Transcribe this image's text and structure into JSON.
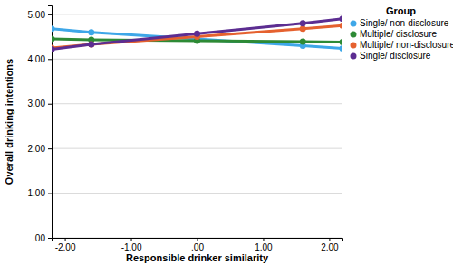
{
  "chart_data": {
    "type": "line",
    "x_label": "Responsible drinker similarity",
    "y_label": "Overall drinking intentions",
    "legend_title": "Group",
    "legend": "right",
    "grid": true,
    "marker": "circle",
    "x": [
      -2.2,
      -1.6,
      0,
      1.6,
      2.2
    ],
    "xlim": [
      -2.2,
      2.2
    ],
    "xticks": [
      {
        "value": -2,
        "label": "-2.00"
      },
      {
        "value": -1,
        "label": "-1.00"
      },
      {
        "value": 0,
        "label": ".00"
      },
      {
        "value": 1,
        "label": "1.00"
      },
      {
        "value": 2,
        "label": "2.00"
      }
    ],
    "ylim": [
      0,
      5.2
    ],
    "yticks": [
      {
        "value": 0,
        "label": ".00"
      },
      {
        "value": 1,
        "label": "1.00"
      },
      {
        "value": 2,
        "label": "2.00"
      },
      {
        "value": 3,
        "label": "3.00"
      },
      {
        "value": 4,
        "label": "4.00"
      },
      {
        "value": 5,
        "label": "5.00"
      }
    ],
    "series": [
      {
        "name": "Single/ non-disclosure",
        "color": "#3ea7e8",
        "values": [
          4.68,
          4.6,
          4.45,
          4.3,
          4.24
        ]
      },
      {
        "name": "Multiple/ disclosure",
        "color": "#2d8a35",
        "values": [
          4.45,
          4.43,
          4.41,
          4.39,
          4.38
        ]
      },
      {
        "name": "Multiple/ non-disclosure",
        "color": "#e5612f",
        "values": [
          4.25,
          4.33,
          4.5,
          4.68,
          4.75
        ]
      },
      {
        "name": "Single/ disclosure",
        "color": "#5c2d91",
        "values": [
          4.22,
          4.33,
          4.57,
          4.8,
          4.9
        ]
      }
    ]
  }
}
